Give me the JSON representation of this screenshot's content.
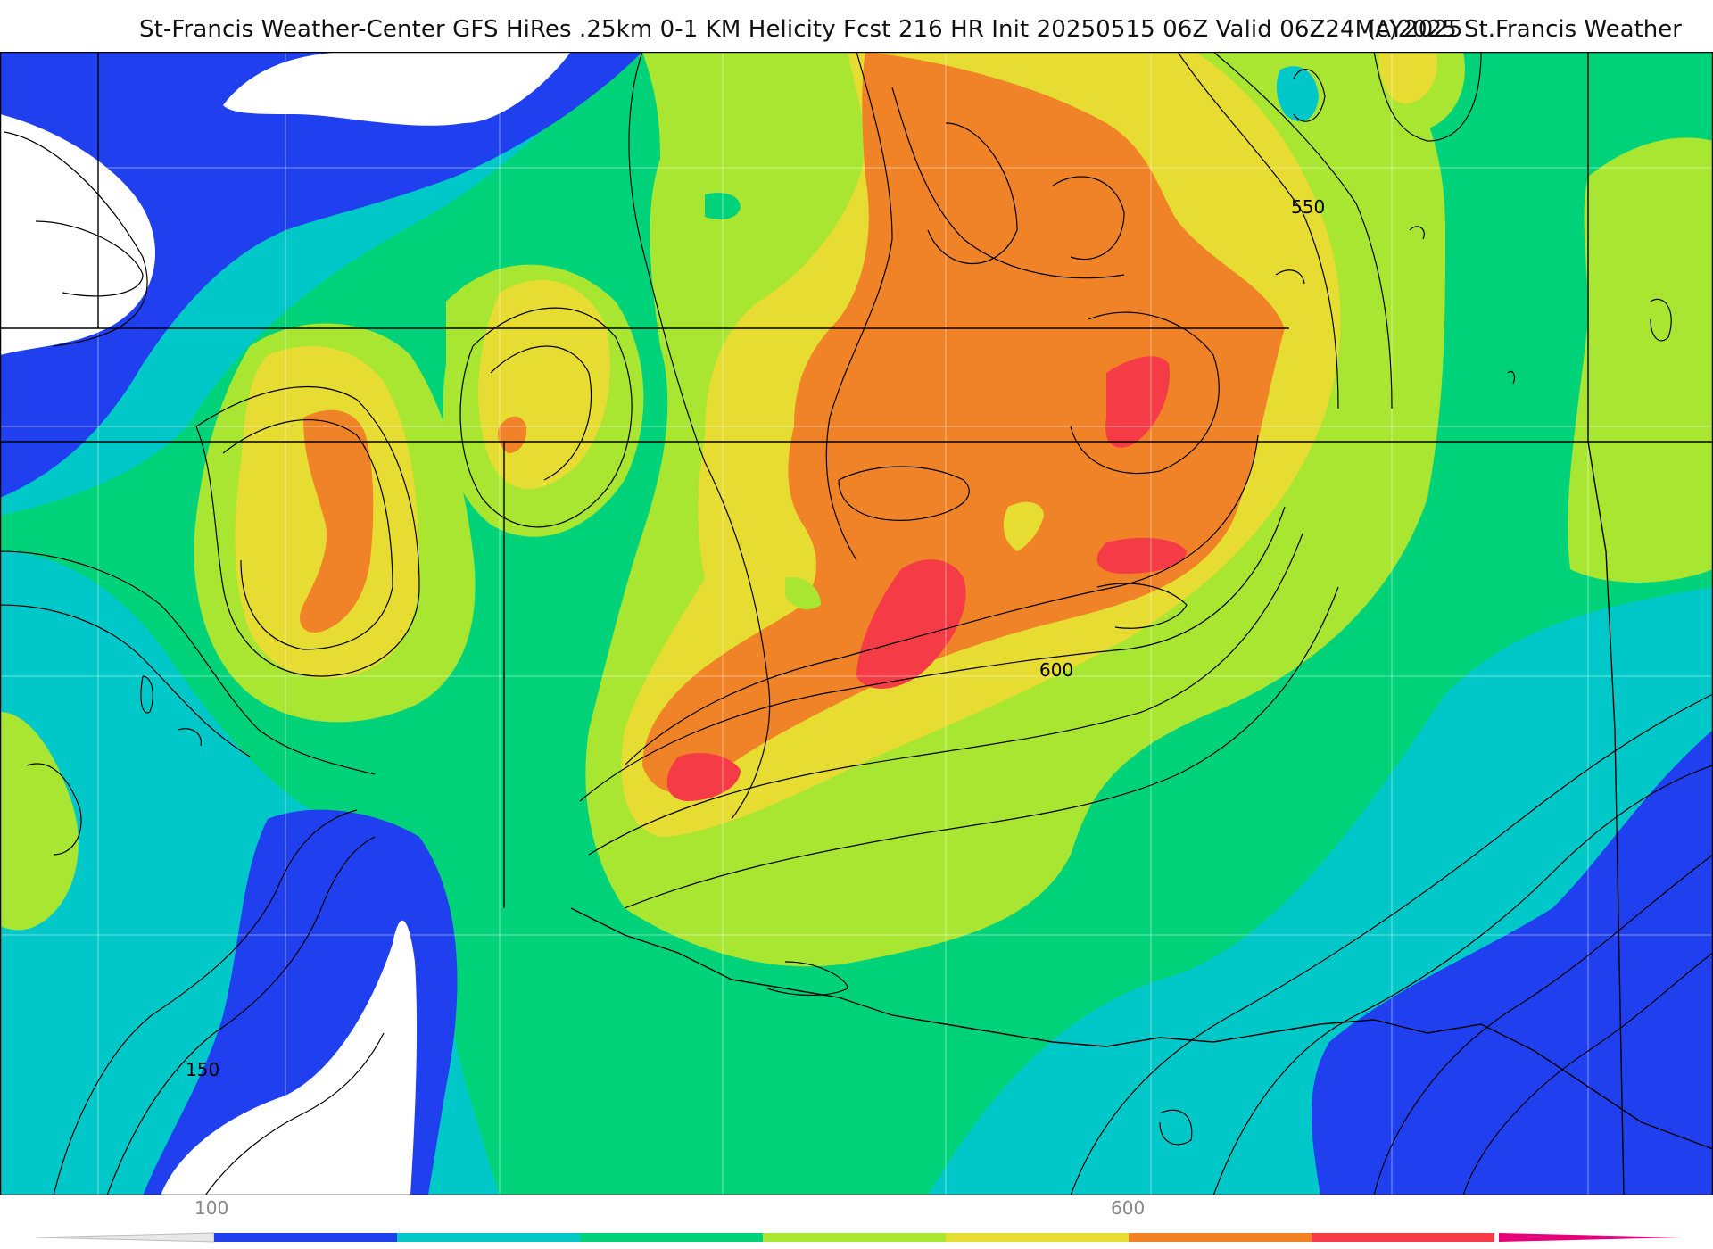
{
  "header": {
    "title": "St-Francis Weather-Center GFS HiRes .25km 0-1 KM Helicity Fcst 216 HR Init 20250515 06Z  Valid 06Z24MAY2025",
    "copyright": "(c)2025 St.Francis Weather"
  },
  "map": {
    "contour_labels": [
      "550",
      "600",
      "150"
    ]
  },
  "legend": {
    "ticks": [
      "100",
      "600"
    ],
    "colors": [
      "#2040f0",
      "#00c8c8",
      "#00d27a",
      "#a8e632",
      "#e6dc32",
      "#f08228",
      "#f53c46",
      "#e6007a"
    ]
  },
  "colors": {
    "blue": "#2040f0",
    "cyan": "#00c8c8",
    "green": "#00d27a",
    "lime": "#a8e632",
    "yellow": "#e6dc32",
    "orange": "#f08228",
    "red": "#f53c46"
  }
}
